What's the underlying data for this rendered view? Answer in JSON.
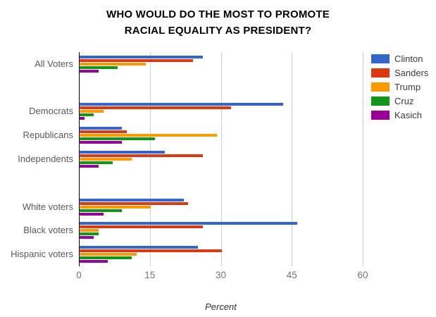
{
  "chart_data": {
    "type": "bar",
    "orientation": "horizontal",
    "title": "WHO WOULD DO THE MOST TO PROMOTE RACIAL EQUALITY AS PRESIDENT?",
    "title_lines": [
      "WHO WOULD DO THE MOST TO PROMOTE",
      "RACIAL EQUALITY AS PRESIDENT?"
    ],
    "xlabel": "Percent",
    "xlim": [
      0,
      60
    ],
    "xticks": [
      0,
      15,
      30,
      45,
      60
    ],
    "grid": true,
    "legend_position": "right",
    "categories": [
      "All Voters",
      "Democrats",
      "Republicans",
      "Independents",
      "White voters",
      "Black voters",
      "Hispanic voters"
    ],
    "row_layout": [
      "All Voters",
      null,
      "Democrats",
      "Republicans",
      "Independents",
      null,
      "White voters",
      "Black voters",
      "Hispanic voters"
    ],
    "series": [
      {
        "name": "Clinton",
        "color": "#3366cc",
        "values": [
          26,
          43,
          9,
          18,
          22,
          46,
          25
        ]
      },
      {
        "name": "Sanders",
        "color": "#dc3912",
        "values": [
          24,
          32,
          10,
          26,
          23,
          26,
          30
        ]
      },
      {
        "name": "Trump",
        "color": "#ff9900",
        "values": [
          14,
          5,
          29,
          11,
          15,
          4,
          12
        ]
      },
      {
        "name": "Cruz",
        "color": "#109618",
        "values": [
          8,
          3,
          16,
          7,
          9,
          4,
          11
        ]
      },
      {
        "name": "Kasich",
        "color": "#990099",
        "values": [
          4,
          1,
          9,
          4,
          5,
          3,
          6
        ]
      }
    ],
    "colors": {
      "axis_line": "#000000",
      "gridline": "#cccccc",
      "tick_label": "#757575",
      "category_label": "#58595b",
      "legend_label": "#3c3c3c",
      "title": "#000000",
      "xlabel": "#333333",
      "background": "#ffffff"
    }
  }
}
